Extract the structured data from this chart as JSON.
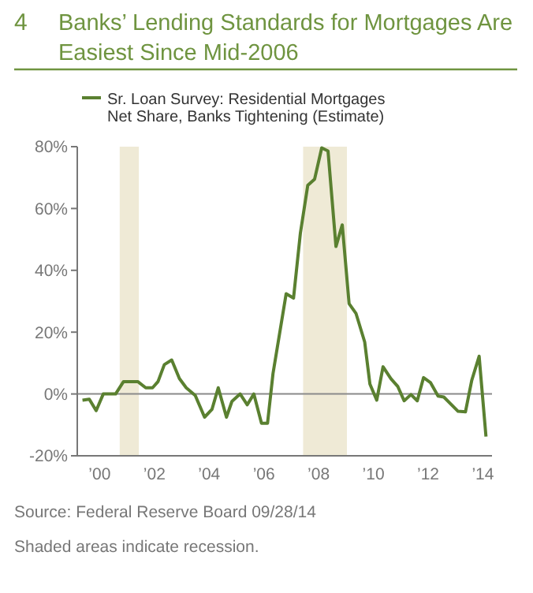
{
  "chart_data": {
    "type": "line",
    "title": "Banks’ Lending Standards for Mortgages Are Easiest Since Mid-2006",
    "annotations": [
      "4",
      "Source: Federal Reserve Board 09/28/14",
      "Shaded areas indicate recession."
    ],
    "legend": "top",
    "series": [
      {
        "name": "Sr. Loan Survey: Residential Mortgages\nNet Share, Banks Tightening (Estimate)",
        "color": "#5a8030",
        "x": [
          1999.44,
          1999.69,
          1999.94,
          2000.2,
          2000.65,
          2000.94,
          2001.46,
          2001.75,
          2002.0,
          2002.2,
          2002.43,
          2002.7,
          2002.98,
          2003.23,
          2003.56,
          2003.9,
          2004.17,
          2004.4,
          2004.7,
          2004.9,
          2005.2,
          2005.46,
          2005.7,
          2005.98,
          2006.2,
          2006.4,
          2006.88,
          2007.15,
          2007.4,
          2007.67,
          2007.92,
          2008.18,
          2008.41,
          2008.7,
          2008.93,
          2009.18,
          2009.43,
          2009.75,
          2009.94,
          2010.19,
          2010.42,
          2010.71,
          2010.96,
          2011.19,
          2011.44,
          2011.67,
          2011.9,
          2012.15,
          2012.43,
          2012.64,
          2013.16,
          2013.43,
          2013.66,
          2013.93,
          2014.18
        ],
        "values": [
          -2,
          -1.7,
          -5.4,
          0,
          0,
          4,
          4,
          2,
          2,
          4,
          9.5,
          11,
          5,
          2,
          -0.5,
          -7.5,
          -5,
          2,
          -7.5,
          -2.4,
          0,
          -3.5,
          0,
          -9.5,
          -9.5,
          6.6,
          32.4,
          31,
          52,
          67.5,
          69.5,
          79.6,
          78.6,
          47.7,
          54.7,
          29.2,
          26.1,
          16.8,
          3.2,
          -2,
          8.8,
          4.9,
          2.4,
          -2.2,
          -0.2,
          -2.2,
          5.3,
          3.7,
          -0.7,
          -1,
          -5.6,
          -5.8,
          4.4,
          12.2,
          -13.8
        ]
      }
    ],
    "bands": [
      {
        "axis": "x",
        "from": 2000.8,
        "to": 2001.5,
        "color": "#efead6"
      },
      {
        "axis": "x",
        "from": 2007.5,
        "to": 2009.1,
        "color": "#efead6"
      }
    ],
    "ref_lines": [
      {
        "axis": "y",
        "value": 0,
        "color": "#8a8a8a"
      }
    ],
    "xlim": [
      1999.25,
      2014.4
    ],
    "xticks": [
      {
        "value": 2000,
        "label": "’00"
      },
      {
        "value": 2002,
        "label": "’02"
      },
      {
        "value": 2004,
        "label": "’04"
      },
      {
        "value": 2006,
        "label": "’06"
      },
      {
        "value": 2008,
        "label": "’08"
      },
      {
        "value": 2010,
        "label": "’10"
      },
      {
        "value": 2012,
        "label": "’12"
      },
      {
        "value": 2014,
        "label": "’14"
      }
    ],
    "ylim": [
      -20,
      80
    ],
    "yticks": [
      {
        "value": -20,
        "label": "-20%"
      },
      {
        "value": 0,
        "label": "0%"
      },
      {
        "value": 20,
        "label": "20%"
      },
      {
        "value": 40,
        "label": "40%"
      },
      {
        "value": 60,
        "label": "60%"
      },
      {
        "value": 80,
        "label": "80%"
      }
    ],
    "grid": false,
    "marker": "none",
    "line_style": "solid"
  }
}
